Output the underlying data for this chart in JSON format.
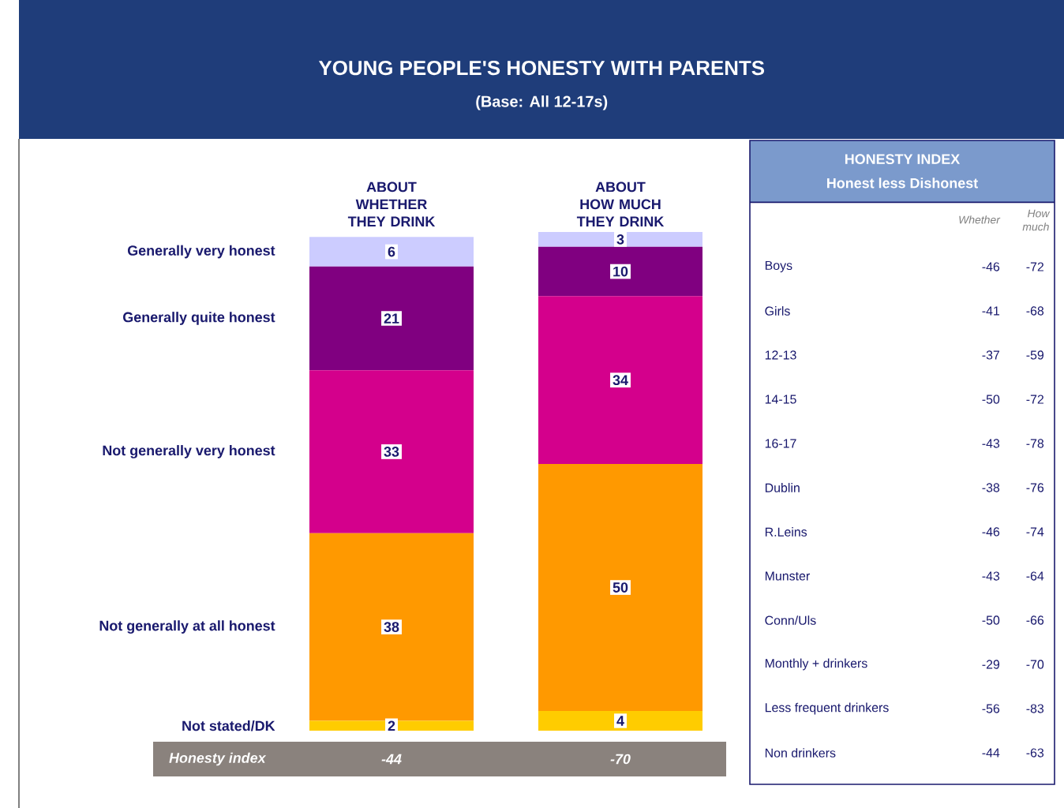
{
  "chart_data": [
    {
      "type": "bar",
      "title": "YOUNG PEOPLE'S HONESTY WITH PARENTS",
      "subtitle": "(Base: All 12-17s)",
      "categories": [
        "ABOUT WHETHER THEY DRINK",
        "ABOUT HOW MUCH THEY DRINK"
      ],
      "stacked": true,
      "data_labels": true,
      "series": [
        {
          "name": "Not stated/DK",
          "color": "#ffcc00",
          "values": [
            2,
            4
          ]
        },
        {
          "name": "Not generally at all honest",
          "color": "#ff9900",
          "values": [
            38,
            50
          ]
        },
        {
          "name": "Not generally very honest",
          "color": "#d4008c",
          "values": [
            33,
            34
          ]
        },
        {
          "name": "Generally quite honest",
          "color": "#800080",
          "values": [
            21,
            10
          ]
        },
        {
          "name": "Generally very honest",
          "color": "#ccccff",
          "values": [
            6,
            3
          ]
        }
      ],
      "annotations": [
        "Honesty index",
        "-44",
        "-70"
      ]
    },
    {
      "type": "other",
      "title": "HONESTY INDEX",
      "subtitle": "Honest less Dishonest",
      "annotations": [
        "Whether",
        "How much",
        "Boys",
        "-46",
        "-72",
        "Girls",
        "-41",
        "-68",
        "12-13",
        "-37",
        "-59",
        "14-15",
        "-50",
        "-72",
        "16-17",
        "-43",
        "-78",
        "Dublin",
        "-38",
        "-76",
        "R.Leins",
        "-46",
        "-74",
        "Munster",
        "-43",
        "-64",
        "Conn/Uls",
        "-50",
        "-66",
        "Monthly + drinkers",
        "-29",
        "-70",
        "Less frequent drinkers",
        "-56",
        "-83",
        "Non drinkers",
        "-44",
        "-63"
      ]
    }
  ]
}
